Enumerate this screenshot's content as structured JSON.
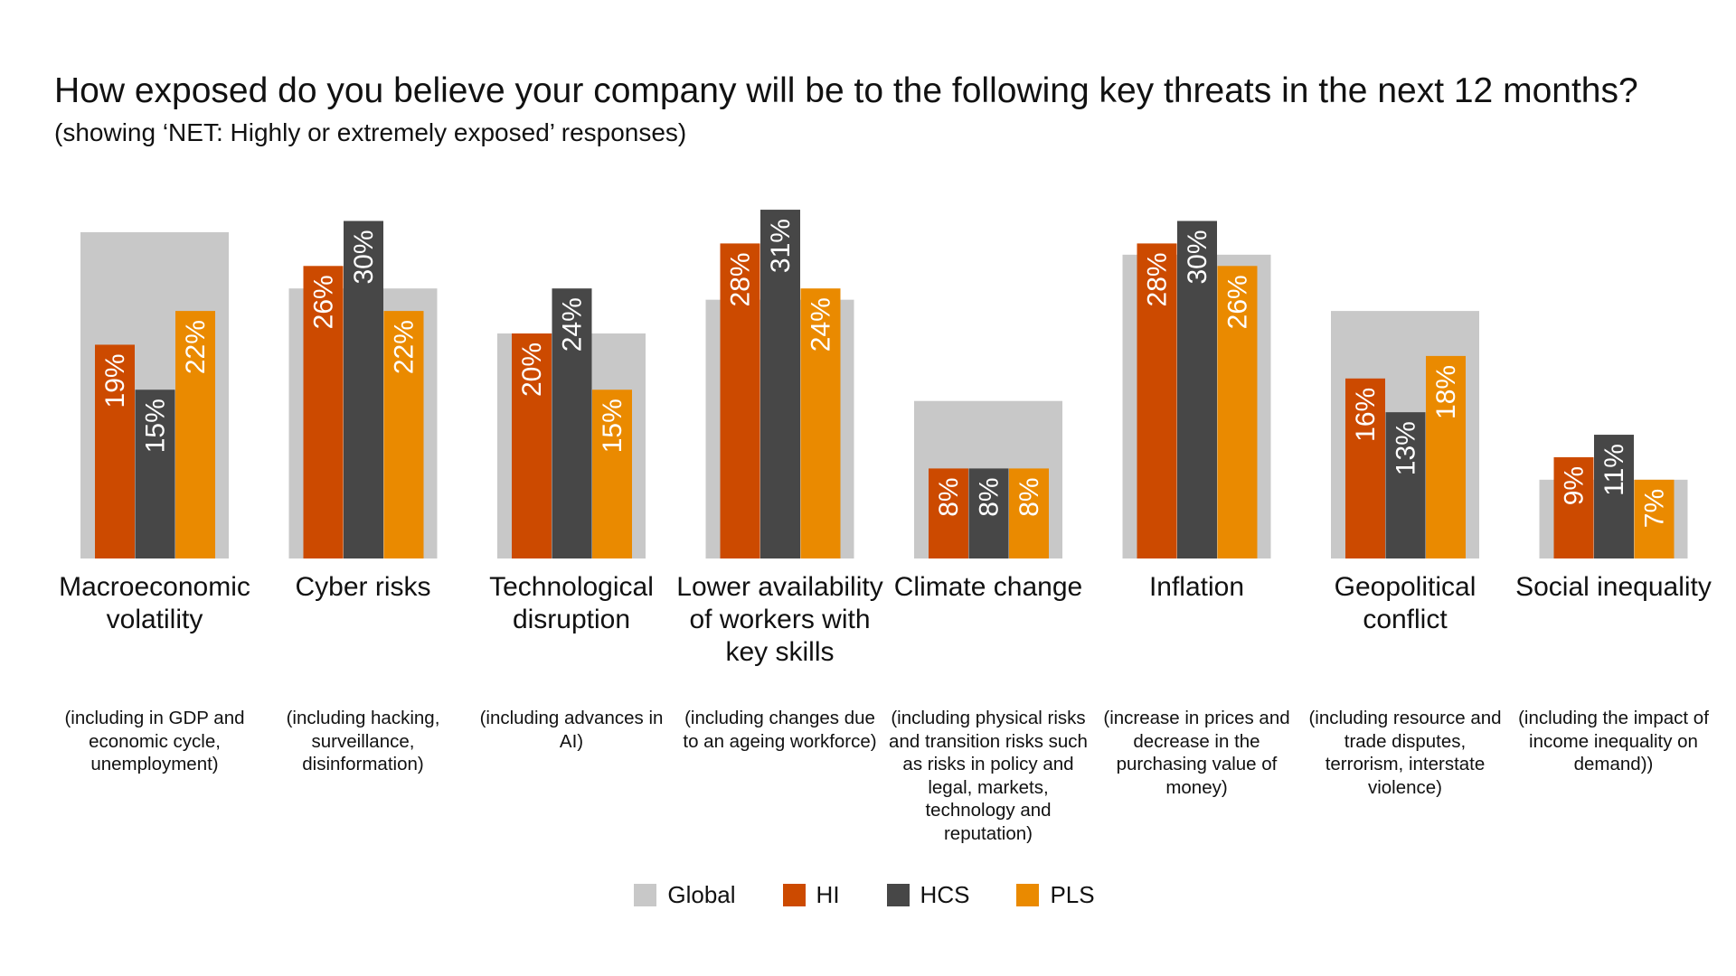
{
  "colors": {
    "Global": "#c8c8c8",
    "HI": "#cc4a00",
    "HCS": "#474747",
    "PLS": "#ea8a00"
  },
  "chart_data": {
    "type": "bar",
    "title": "How exposed do you believe your company will be to the following key threats in the next 12 months?",
    "subtitle": "(showing ‘NET: Highly or extremely exposed’ responses)",
    "ylim": [
      0,
      33
    ],
    "grid": false,
    "legend_position": "bottom-center",
    "categories": [
      "Macroeconomic volatility",
      "Cyber risks",
      "Technological disruption",
      "Lower availability of workers with key skills",
      "Climate change",
      "Inflation",
      "Geopolitical conflict",
      "Social inequality"
    ],
    "category_notes": [
      "(including in GDP and economic cycle, unemployment)",
      "(including hacking, surveillance, disinformation)",
      "(including advances in AI)",
      "(including changes due to an ageing workforce)",
      "(including physical risks and transition risks such as risks in policy and legal, markets, technology and reputation)",
      "(increase in prices and decrease in the purchasing value of money)",
      "(including resource and trade disputes, terrorism, interstate violence)",
      "(including the impact of income inequality on demand))"
    ],
    "series": [
      {
        "name": "Global",
        "values": [
          29,
          24,
          20,
          23,
          14,
          27,
          22,
          7
        ],
        "labels": [
          "",
          "",
          "",
          "",
          "",
          "",
          "",
          ""
        ]
      },
      {
        "name": "HI",
        "values": [
          19,
          26,
          20,
          28,
          8,
          28,
          16,
          9
        ],
        "labels": [
          "19%",
          "26%",
          "20%",
          "28%",
          "8%",
          "28%",
          "16%",
          "9%"
        ]
      },
      {
        "name": "HCS",
        "values": [
          15,
          30,
          24,
          31,
          8,
          30,
          13,
          11
        ],
        "labels": [
          "15%",
          "30%",
          "24%",
          "31%",
          "8%",
          "30%",
          "13%",
          "11%"
        ]
      },
      {
        "name": "PLS",
        "values": [
          22,
          22,
          15,
          24,
          8,
          26,
          18,
          7
        ],
        "labels": [
          "22%",
          "22%",
          "15%",
          "24%",
          "8%",
          "26%",
          "18%",
          "7%"
        ]
      }
    ]
  }
}
